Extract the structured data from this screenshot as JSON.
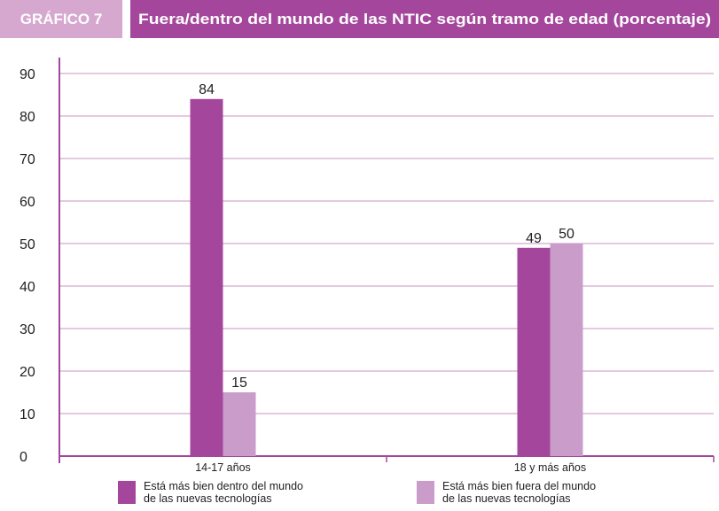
{
  "chart_data": {
    "type": "bar",
    "label": "GRÁFICO 7",
    "title": "Fuera/dentro del mundo de las NTIC según tramo de edad (porcentaje)",
    "categories": [
      "14-17 años",
      "18 y más años"
    ],
    "series": [
      {
        "name": "Está más bien dentro del mundo de las nuevas tecnologías",
        "color": "#a4479c",
        "values": [
          84,
          49
        ]
      },
      {
        "name": "Está más bien fuera del mundo de las nuevas tecnologías",
        "color": "#ca9cc9",
        "values": [
          15,
          50
        ]
      }
    ],
    "ylim": [
      0,
      90
    ],
    "yticks": [
      0,
      10,
      20,
      30,
      40,
      50,
      60,
      70,
      80,
      90
    ],
    "grid": true
  }
}
